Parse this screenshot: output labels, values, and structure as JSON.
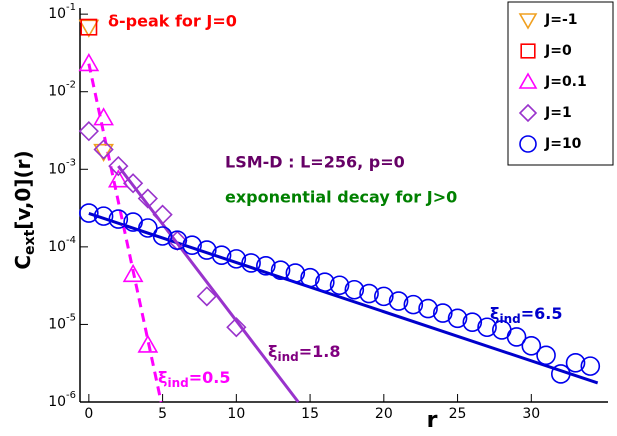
{
  "chart_data": {
    "type": "scatter",
    "xlabel": "r",
    "ylabel": {
      "main": "C",
      "sub": "ext",
      "rest": "[v,0](r)"
    },
    "log_y": true,
    "xlim": [
      -0.6,
      35.2
    ],
    "ylim": [
      1e-06,
      0.12
    ],
    "xticks": [
      0,
      5,
      10,
      15,
      20,
      25,
      30
    ],
    "yticks": [
      {
        "value": 1e-06,
        "label": "10-6"
      },
      {
        "value": 1e-05,
        "label": "10-5"
      },
      {
        "value": 0.0001,
        "label": "10-4"
      },
      {
        "value": 0.001,
        "label": "10-3"
      },
      {
        "value": 0.01,
        "label": "10-2"
      },
      {
        "value": 0.1,
        "label": "10-1"
      }
    ],
    "legend": "top-right",
    "series": [
      {
        "name": "J=-1",
        "color": "#f0a020",
        "marker": "triangle-down",
        "x": [
          0,
          1
        ],
        "values": [
          0.068,
          0.0017
        ]
      },
      {
        "name": "J=0",
        "color": "#ff0000",
        "marker": "square",
        "x": [
          0
        ],
        "values": [
          0.068
        ]
      },
      {
        "name": "J=0.1",
        "color": "#ff00ff",
        "marker": "triangle-up",
        "x": [
          0,
          1,
          2,
          3,
          4
        ],
        "values": [
          0.023,
          0.0046,
          0.00073,
          4.4e-05,
          5.4e-06
        ]
      },
      {
        "name": "J=1",
        "color": "#9933cc",
        "marker": "diamond",
        "x": [
          0,
          1,
          2,
          3,
          4,
          5,
          6,
          8,
          10
        ],
        "values": [
          0.0031,
          0.0018,
          0.0011,
          0.00066,
          0.00042,
          0.00026,
          0.00012,
          2.3e-05,
          9.2e-06
        ]
      },
      {
        "name": "J=10",
        "color": "#0000ee",
        "marker": "circle",
        "x": [
          0,
          1,
          2,
          3,
          4,
          5,
          6,
          7,
          8,
          9,
          10,
          11,
          12,
          13,
          14,
          15,
          16,
          17,
          18,
          19,
          20,
          21,
          22,
          23,
          24,
          25,
          26,
          27,
          28,
          29,
          30,
          31,
          32,
          33,
          34
        ],
        "values": [
          0.000273,
          0.000249,
          0.000228,
          0.000209,
          0.000175,
          0.000138,
          0.000122,
          0.000105,
          9.1e-05,
          7.8e-05,
          7e-05,
          6.2e-05,
          5.7e-05,
          5e-05,
          4.6e-05,
          4e-05,
          3.5e-05,
          3.2e-05,
          2.8e-05,
          2.5e-05,
          2.3e-05,
          2e-05,
          1.8e-05,
          1.6e-05,
          1.4e-05,
          1.2e-05,
          1.07e-05,
          9.2e-06,
          8.5e-06,
          6.9e-06,
          5.3e-06,
          4e-06,
          2.3e-06,
          3.2e-06,
          2.9e-06
        ]
      }
    ],
    "lines": [
      {
        "color": "#0000cc",
        "dashed": false,
        "x": [
          0,
          34.5
        ],
        "values": [
          0.00027,
          1.76e-06
        ]
      },
      {
        "color": "#9933cc",
        "dashed": false,
        "x": [
          2,
          14.2
        ],
        "values": [
          0.0011,
          1e-06
        ]
      },
      {
        "color": "#ff00ff",
        "dashed": true,
        "x": [
          0,
          4.9
        ],
        "values": [
          0.023,
          1e-06
        ]
      }
    ],
    "annotations": [
      {
        "text": "δ-peak for J=0",
        "color": "#ff0000"
      },
      {
        "text": "LSM-D : L=256, p=0",
        "color": "#660066"
      },
      {
        "text": "exponential decay for J>0",
        "color": "#008000"
      }
    ],
    "xi_labels": [
      {
        "main": "ξ",
        "sub": "ind",
        "rest": "=6.5",
        "color": "#0000cc"
      },
      {
        "main": "ξ",
        "sub": "ind",
        "rest": "=1.8",
        "color": "#800080"
      },
      {
        "main": "ξ",
        "sub": "ind",
        "rest": "=0.5",
        "color": "#ff00ff"
      }
    ]
  }
}
